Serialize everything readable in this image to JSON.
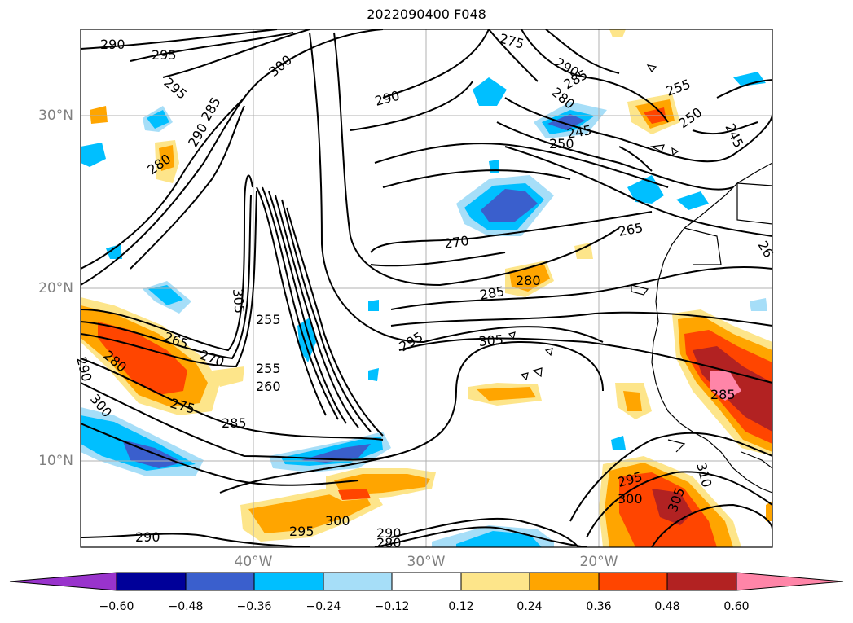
{
  "title": "2022090400 F048",
  "map": {
    "lat_labels": [
      "30°N",
      "20°N",
      "10°N"
    ],
    "lon_labels": [
      "40°W",
      "30°W",
      "20°W"
    ],
    "contour_labels": [
      "290",
      "295",
      "295",
      "300",
      "285",
      "290",
      "280",
      "275",
      "290",
      "285",
      "280",
      "290",
      "255",
      "250",
      "245",
      "250",
      "245",
      "265",
      "270",
      "280",
      "285",
      "295",
      "305",
      "255",
      "255",
      "260",
      "265",
      "270",
      "275",
      "285",
      "280",
      "290",
      "300",
      "285",
      "310",
      "305",
      "300",
      "295",
      "300",
      "295",
      "290",
      "280",
      "290",
      "305",
      "26"
    ]
  },
  "colorbar": {
    "ticks": [
      "−0.60",
      "−0.48",
      "−0.36",
      "−0.24",
      "−0.12",
      "0.12",
      "0.24",
      "0.36",
      "0.48",
      "0.60"
    ],
    "colors": [
      "#9933cc",
      "#000099",
      "#3a5fcd",
      "#00bfff",
      "#a6def8",
      "#ffffff",
      "#fde58a",
      "#ffa500",
      "#ff4500",
      "#b22222",
      "#ff85a8"
    ]
  }
}
